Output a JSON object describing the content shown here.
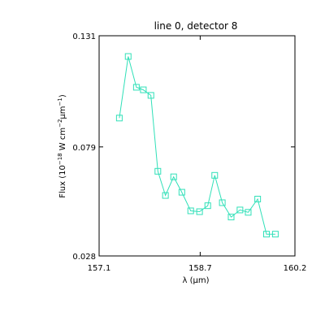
{
  "chart_data": {
    "type": "line",
    "title": "line 0, detector 8",
    "xlabel": "λ (μm)",
    "ylabel": "Flux (10^-18 W cm^-2 μm^-1)",
    "ylabel_parts": {
      "prefix": "Flux (10",
      "exp1": "−18",
      "mid1": " W cm",
      "exp2": "−2",
      "mid2": "μm",
      "exp3": "−1",
      "suffix": ")"
    },
    "xlim": [
      157.1,
      160.2
    ],
    "ylim": [
      0.028,
      0.131
    ],
    "xticks": [
      {
        "value": 157.1,
        "label": "157.1"
      },
      {
        "value": 158.7,
        "label": "158.7"
      },
      {
        "value": 160.2,
        "label": "160.2"
      }
    ],
    "yticks": [
      {
        "value": 0.028,
        "label": "0.028"
      },
      {
        "value": 0.079,
        "label": "0.079"
      },
      {
        "value": 0.131,
        "label": "0.131"
      }
    ],
    "grid": false,
    "series": [
      {
        "color": "#30e0b8",
        "marker": "square",
        "x": [
          157.42,
          157.56,
          157.69,
          157.8,
          157.92,
          158.03,
          158.15,
          158.28,
          158.41,
          158.55,
          158.69,
          158.82,
          158.93,
          159.05,
          159.19,
          159.33,
          159.46,
          159.61,
          159.75,
          159.89
        ],
        "y": [
          0.0925,
          0.1213,
          0.1069,
          0.1057,
          0.1031,
          0.0676,
          0.0563,
          0.065,
          0.0578,
          0.0491,
          0.0487,
          0.0515,
          0.0657,
          0.0529,
          0.0462,
          0.0495,
          0.0484,
          0.0546,
          0.0382,
          0.0382
        ]
      }
    ]
  }
}
